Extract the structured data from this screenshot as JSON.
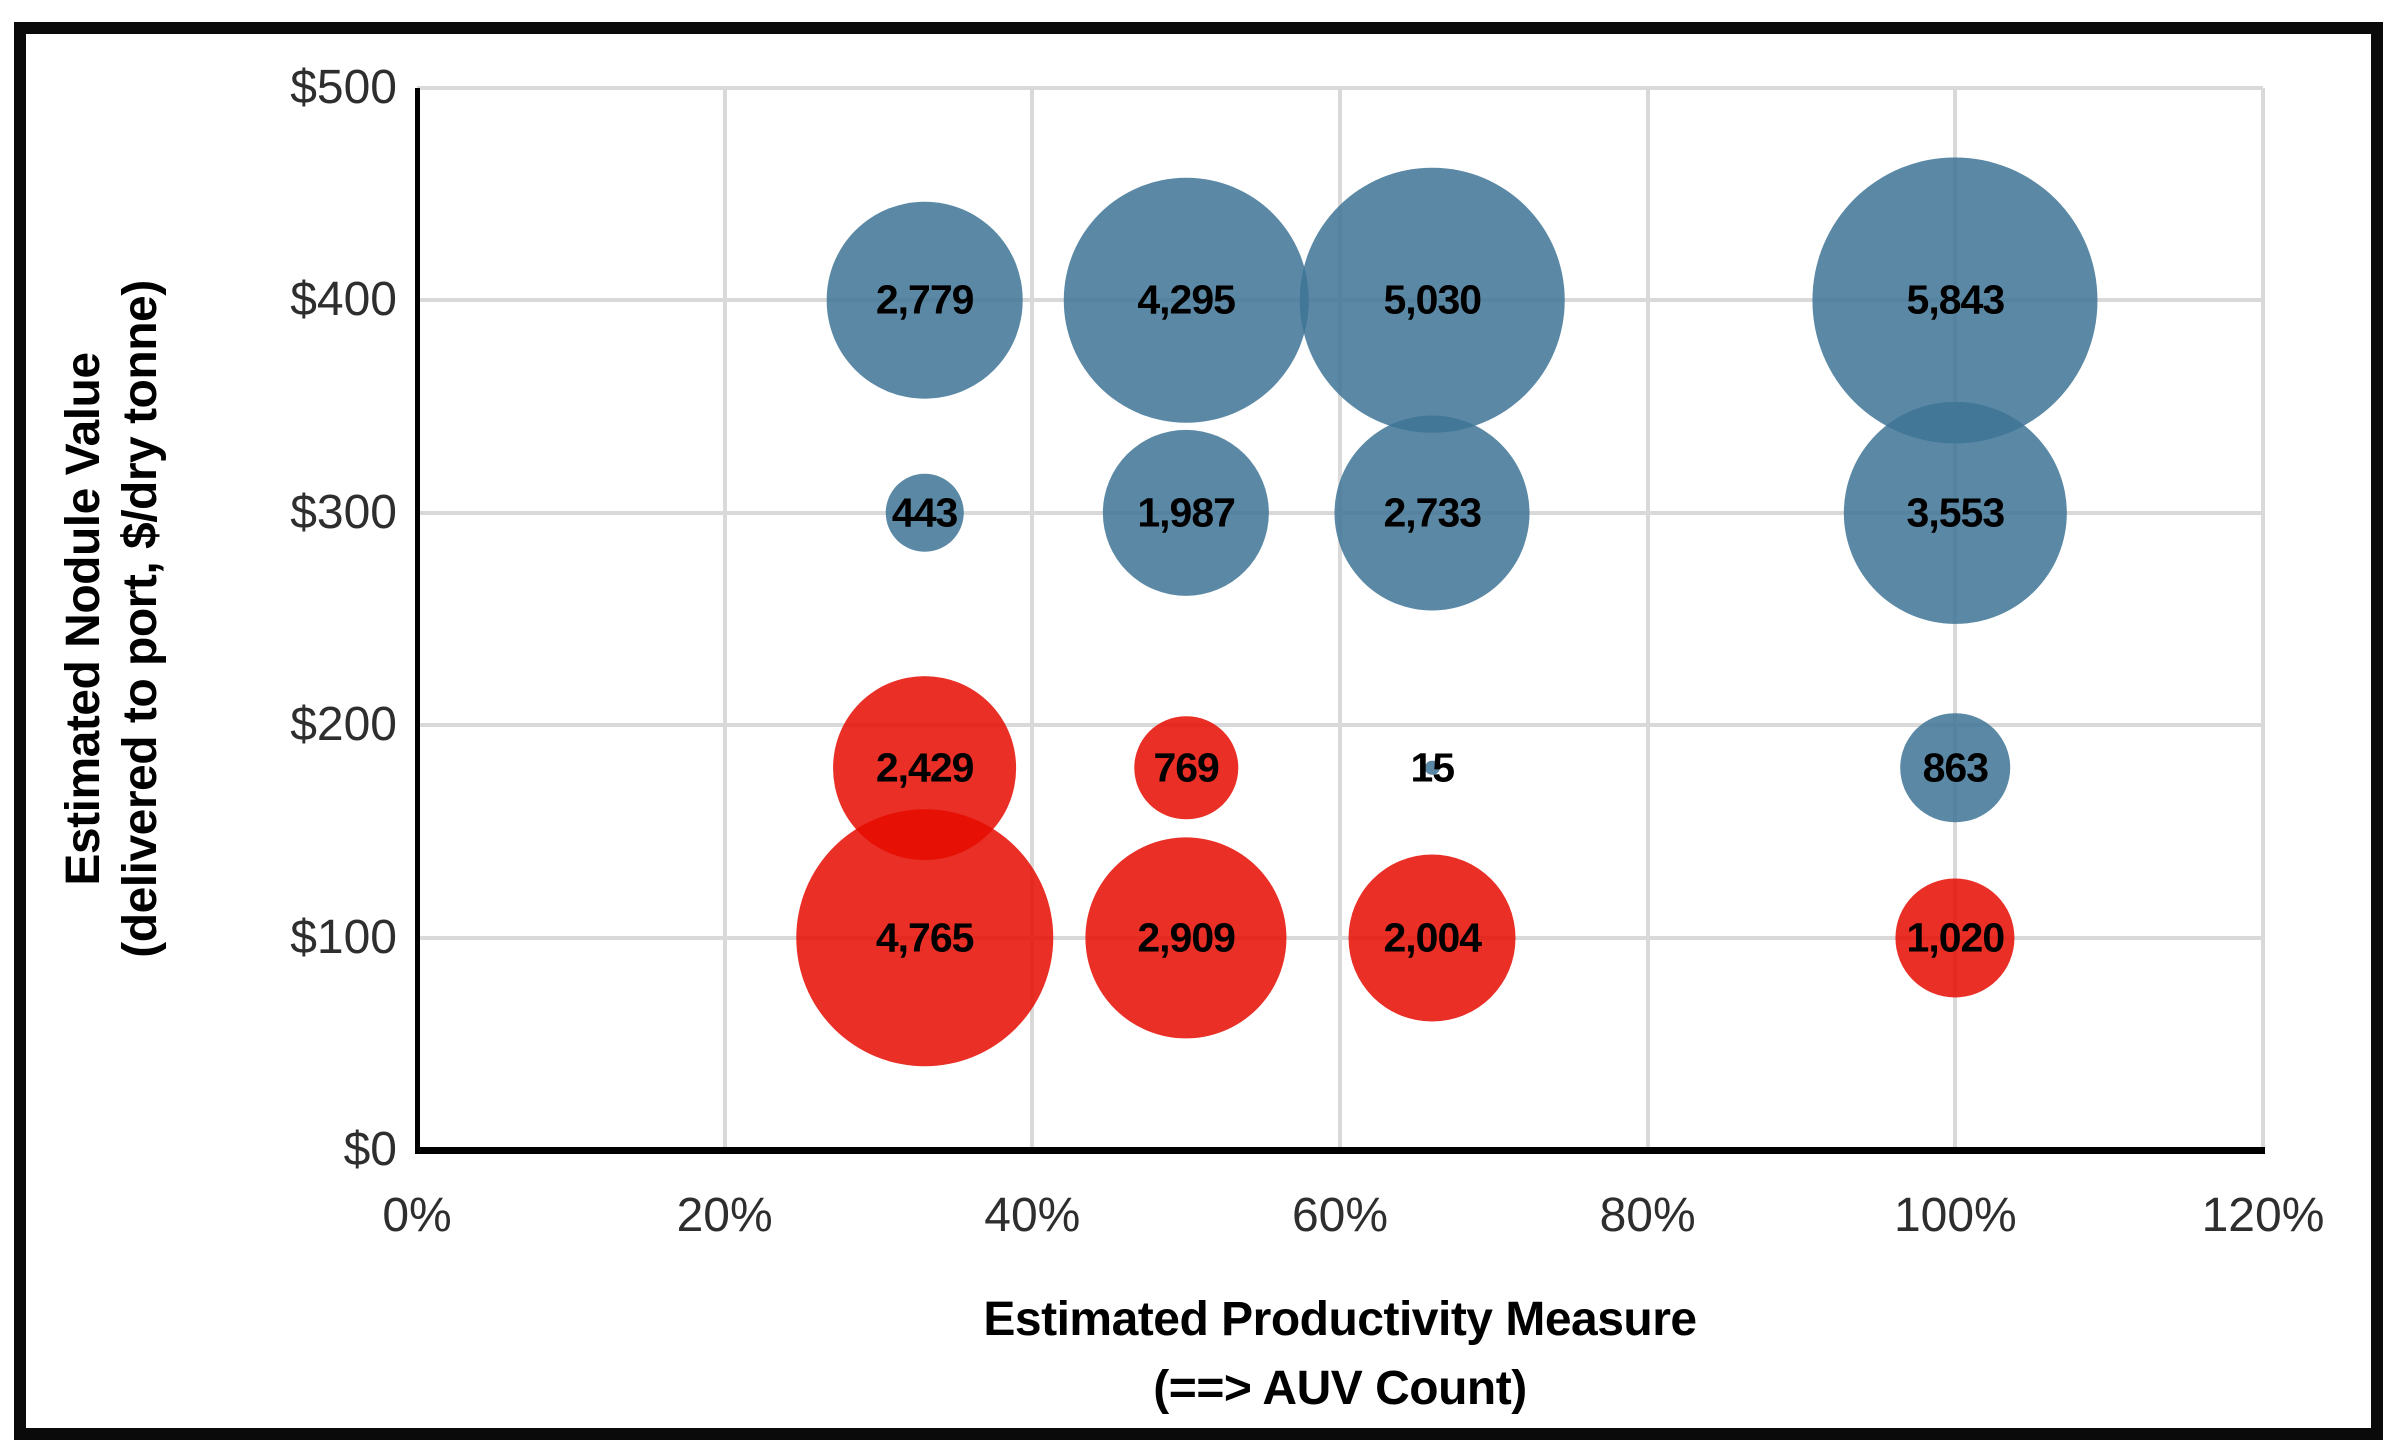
{
  "chart_data": {
    "type": "scatter",
    "subtype": "bubble",
    "title": "",
    "xlabel_line1": "Estimated Productivity Measure",
    "xlabel_line2": "(==> AUV Count)",
    "ylabel_line1": "Estimated Nodule Value",
    "ylabel_line2": "(delivered to port, $/dry tonne)",
    "x_ticks": [
      "0%",
      "20%",
      "40%",
      "60%",
      "80%",
      "100%",
      "120%"
    ],
    "x_tick_values": [
      0,
      20,
      40,
      60,
      80,
      100,
      120
    ],
    "y_ticks": [
      "$0",
      "$100",
      "$200",
      "$300",
      "$400",
      "$500"
    ],
    "y_tick_values": [
      0,
      100,
      200,
      300,
      400,
      500
    ],
    "x_range": [
      0,
      120
    ],
    "y_range": [
      0,
      500
    ],
    "grid": true,
    "legend": "none",
    "size_encoding": "bubble area proportional to labeled value",
    "series": [
      {
        "name": "blue-series",
        "hex": "#5B89A5",
        "fill": "rgba(62,116,149,0.85)",
        "points": [
          {
            "x": 33,
            "y": 400,
            "size": 2779,
            "label": "2,779"
          },
          {
            "x": 50,
            "y": 400,
            "size": 4295,
            "label": "4,295"
          },
          {
            "x": 66,
            "y": 400,
            "size": 5030,
            "label": "5,030"
          },
          {
            "x": 100,
            "y": 400,
            "size": 5843,
            "label": "5,843"
          },
          {
            "x": 33,
            "y": 300,
            "size": 443,
            "label": "443"
          },
          {
            "x": 50,
            "y": 300,
            "size": 1987,
            "label": "1,987"
          },
          {
            "x": 66,
            "y": 300,
            "size": 2733,
            "label": "2,733"
          },
          {
            "x": 100,
            "y": 300,
            "size": 3553,
            "label": "3,553"
          },
          {
            "x": 66,
            "y": 180,
            "size": 15,
            "label": "15"
          },
          {
            "x": 100,
            "y": 180,
            "size": 863,
            "label": "863"
          }
        ]
      },
      {
        "name": "red-series",
        "hex": "#E8311F",
        "fill": "rgba(229,10,0,0.85)",
        "points": [
          {
            "x": 33,
            "y": 180,
            "size": 2429,
            "label": "2,429"
          },
          {
            "x": 50,
            "y": 180,
            "size": 769,
            "label": "769"
          },
          {
            "x": 33,
            "y": 100,
            "size": 4765,
            "label": "4,765"
          },
          {
            "x": 50,
            "y": 100,
            "size": 2909,
            "label": "2,909"
          },
          {
            "x": 66,
            "y": 100,
            "size": 2004,
            "label": "2,004"
          },
          {
            "x": 100,
            "y": 100,
            "size": 1020,
            "label": "1,020"
          }
        ]
      }
    ],
    "colors": {
      "gridline": "#d9d9d9",
      "axis": "#000000",
      "tick_text": "#2e2e2e",
      "label_text": "#000000",
      "frame": "#0a0a0a",
      "background": "#ffffff"
    }
  }
}
